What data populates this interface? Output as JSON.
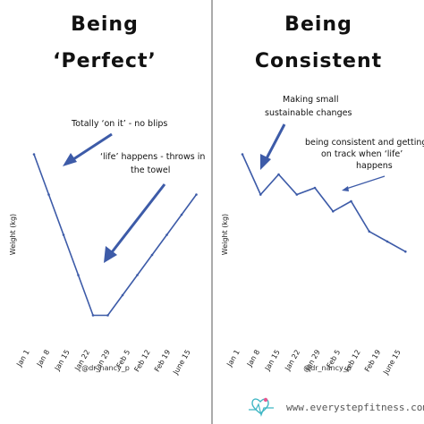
{
  "colors": {
    "line": "#3d5ba8",
    "divider": "#aaaaaa",
    "background": "#ffffff",
    "brand": "#3fb6c4",
    "heart": "#e8588f"
  },
  "footer": {
    "site": "www.everystepfitness.com",
    "logo_icon": "heart-pulse-icon"
  },
  "chart_data": [
    {
      "type": "line",
      "title_line1": "Being",
      "title_line2": "‘Perfect’",
      "ylabel": "Weight (kg)",
      "xlabel": "",
      "categories": [
        "Jan 1",
        "Jan 8",
        "Jan 15",
        "Jan 22",
        "Jan 29",
        "Feb 5",
        "Feb 12",
        "Feb 19",
        "June 15"
      ],
      "x": [
        0,
        1,
        2,
        3,
        4,
        5,
        6,
        7,
        8,
        9,
        10,
        11
      ],
      "values": [
        94,
        82,
        70,
        58,
        46,
        46,
        52,
        58,
        64,
        70,
        76,
        82
      ],
      "ylim": [
        40,
        100
      ],
      "grid": false,
      "handle": "@dr_nancy_p",
      "annotations": [
        {
          "text": [
            "Totally ‘on it’ - no blips"
          ]
        },
        {
          "text": [
            "‘life’ happens - throws in",
            "the towel"
          ]
        }
      ]
    },
    {
      "type": "line",
      "title_line1": "Being",
      "title_line2": "Consistent",
      "ylabel": "Weight (kg)",
      "xlabel": "",
      "categories": [
        "Jan 1",
        "Jan 8",
        "Jan 15",
        "Jan 22",
        "Jan 29",
        "Feb 5",
        "Feb 12",
        "Feb 19",
        "June 15"
      ],
      "x": [
        0,
        1,
        2,
        3,
        4,
        5,
        6,
        7,
        8,
        9
      ],
      "values": [
        94,
        82,
        88,
        82,
        84,
        77,
        80,
        71,
        68,
        65
      ],
      "ylim": [
        40,
        100
      ],
      "grid": false,
      "handle": "@dr_nancy_p",
      "annotations": [
        {
          "text": [
            "Making small",
            "sustainable changes"
          ]
        },
        {
          "text": [
            "being consistent and getting",
            "on track when ‘life’",
            "happens"
          ]
        }
      ]
    }
  ]
}
